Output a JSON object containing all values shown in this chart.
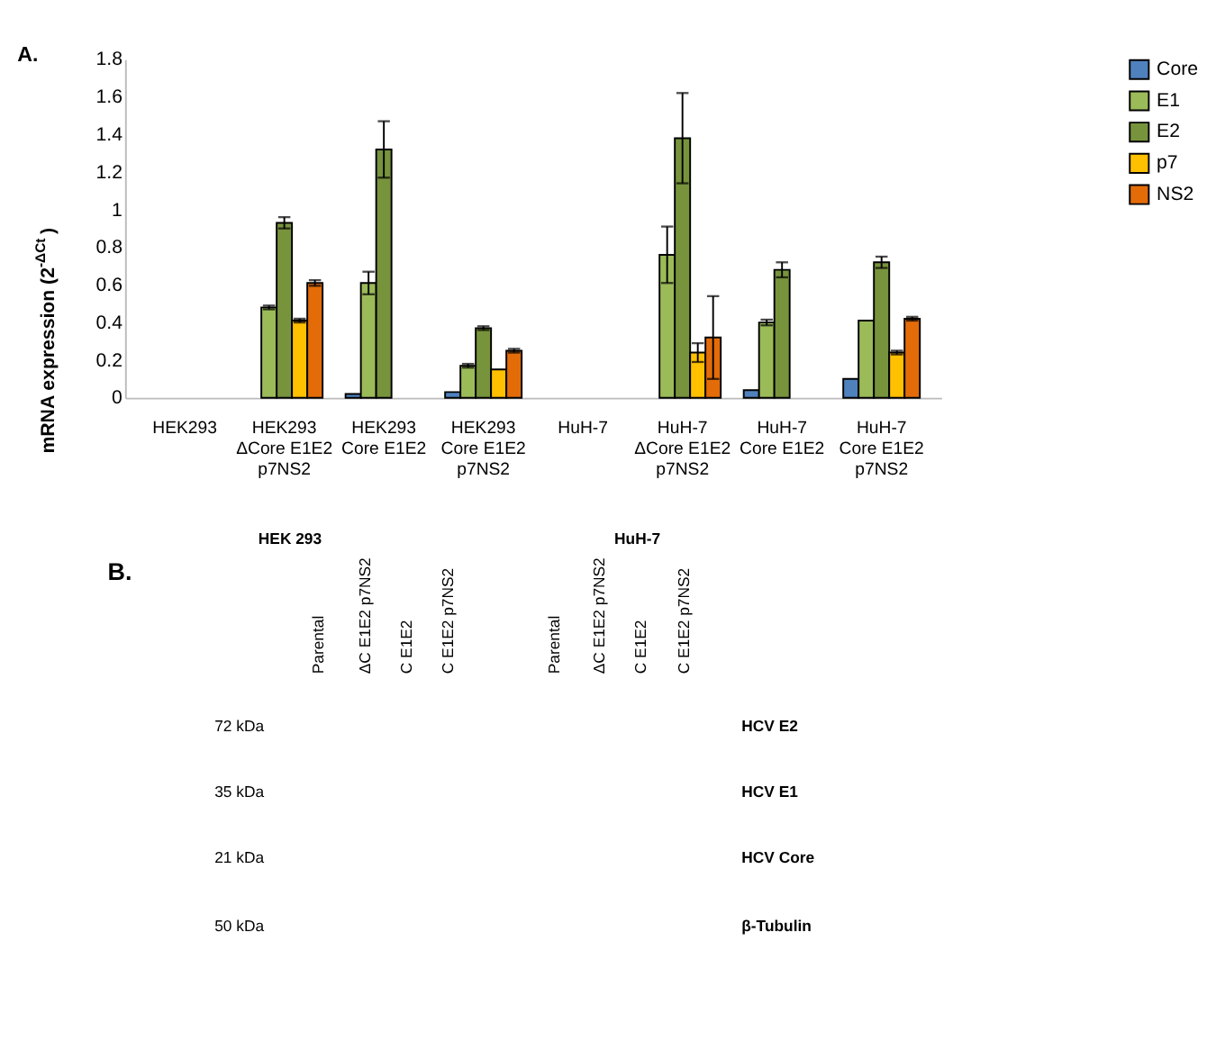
{
  "chart_data": [
    {
      "type": "bar",
      "annotations": [
        "A."
      ],
      "ylabel": "mRNA expression (2$^{-ΔCt}$)",
      "categories": [
        "HEK293",
        "HEK293\nΔCore E1E2\np7NS2",
        "HEK293\nCore E1E2",
        "HEK293\nCore E1E2\np7NS2",
        "HuH-7",
        "HuH-7\nΔCore E1E2\np7NS2",
        "HuH-7\nCore E1E2",
        "HuH-7\nCore E1E2\np7NS2"
      ],
      "series": [
        {
          "name": "Core",
          "color": "#4f81bd",
          "values": [
            null,
            null,
            0.02,
            0.03,
            null,
            null,
            0.04,
            0.1
          ],
          "errors": [
            null,
            null,
            null,
            null,
            null,
            null,
            null,
            null
          ]
        },
        {
          "name": "E1",
          "color": "#9bbb59",
          "values": [
            null,
            0.48,
            0.61,
            0.17,
            null,
            0.76,
            0.4,
            0.41
          ],
          "errors": [
            null,
            0.01,
            0.06,
            0.01,
            null,
            0.15,
            0.015,
            null
          ]
        },
        {
          "name": "E2",
          "color": "#77933c",
          "values": [
            null,
            0.93,
            1.32,
            0.37,
            null,
            1.38,
            0.68,
            0.72
          ],
          "errors": [
            null,
            0.03,
            0.15,
            0.01,
            null,
            0.24,
            0.04,
            0.03
          ]
        },
        {
          "name": "p7",
          "color": "#ffc000",
          "values": [
            null,
            0.41,
            null,
            0.15,
            null,
            0.24,
            null,
            0.24
          ],
          "errors": [
            null,
            0.01,
            null,
            null,
            null,
            0.05,
            null,
            0.01
          ]
        },
        {
          "name": "NS2",
          "color": "#e36c09",
          "values": [
            null,
            0.61,
            null,
            0.25,
            null,
            0.32,
            null,
            0.42
          ],
          "errors": [
            null,
            0.015,
            null,
            0.01,
            null,
            0.22,
            null,
            0.01
          ]
        }
      ],
      "ylim": [
        0,
        1.8
      ],
      "yticks": [
        0,
        0.2,
        0.4,
        0.6,
        0.8,
        1,
        1.2,
        1.4,
        1.6,
        1.8
      ],
      "grid": false,
      "legend": "top right"
    },
    {
      "type": "other",
      "annotations": [
        "B.",
        "HEK 293",
        "HuH-7",
        "Parental",
        "ΔC E1E2 p7NS2",
        "C E1E2",
        "C E1E2 p7NS2",
        "Parental",
        "ΔC E1E2 p7NS2",
        "C E1E2",
        "C E1E2 p7NS2",
        "72 kDa",
        "35 kDa",
        "21 kDa",
        "50 kDa",
        "HCV E2",
        "HCV E1",
        "HCV Core",
        "β-Tubulin"
      ]
    }
  ]
}
